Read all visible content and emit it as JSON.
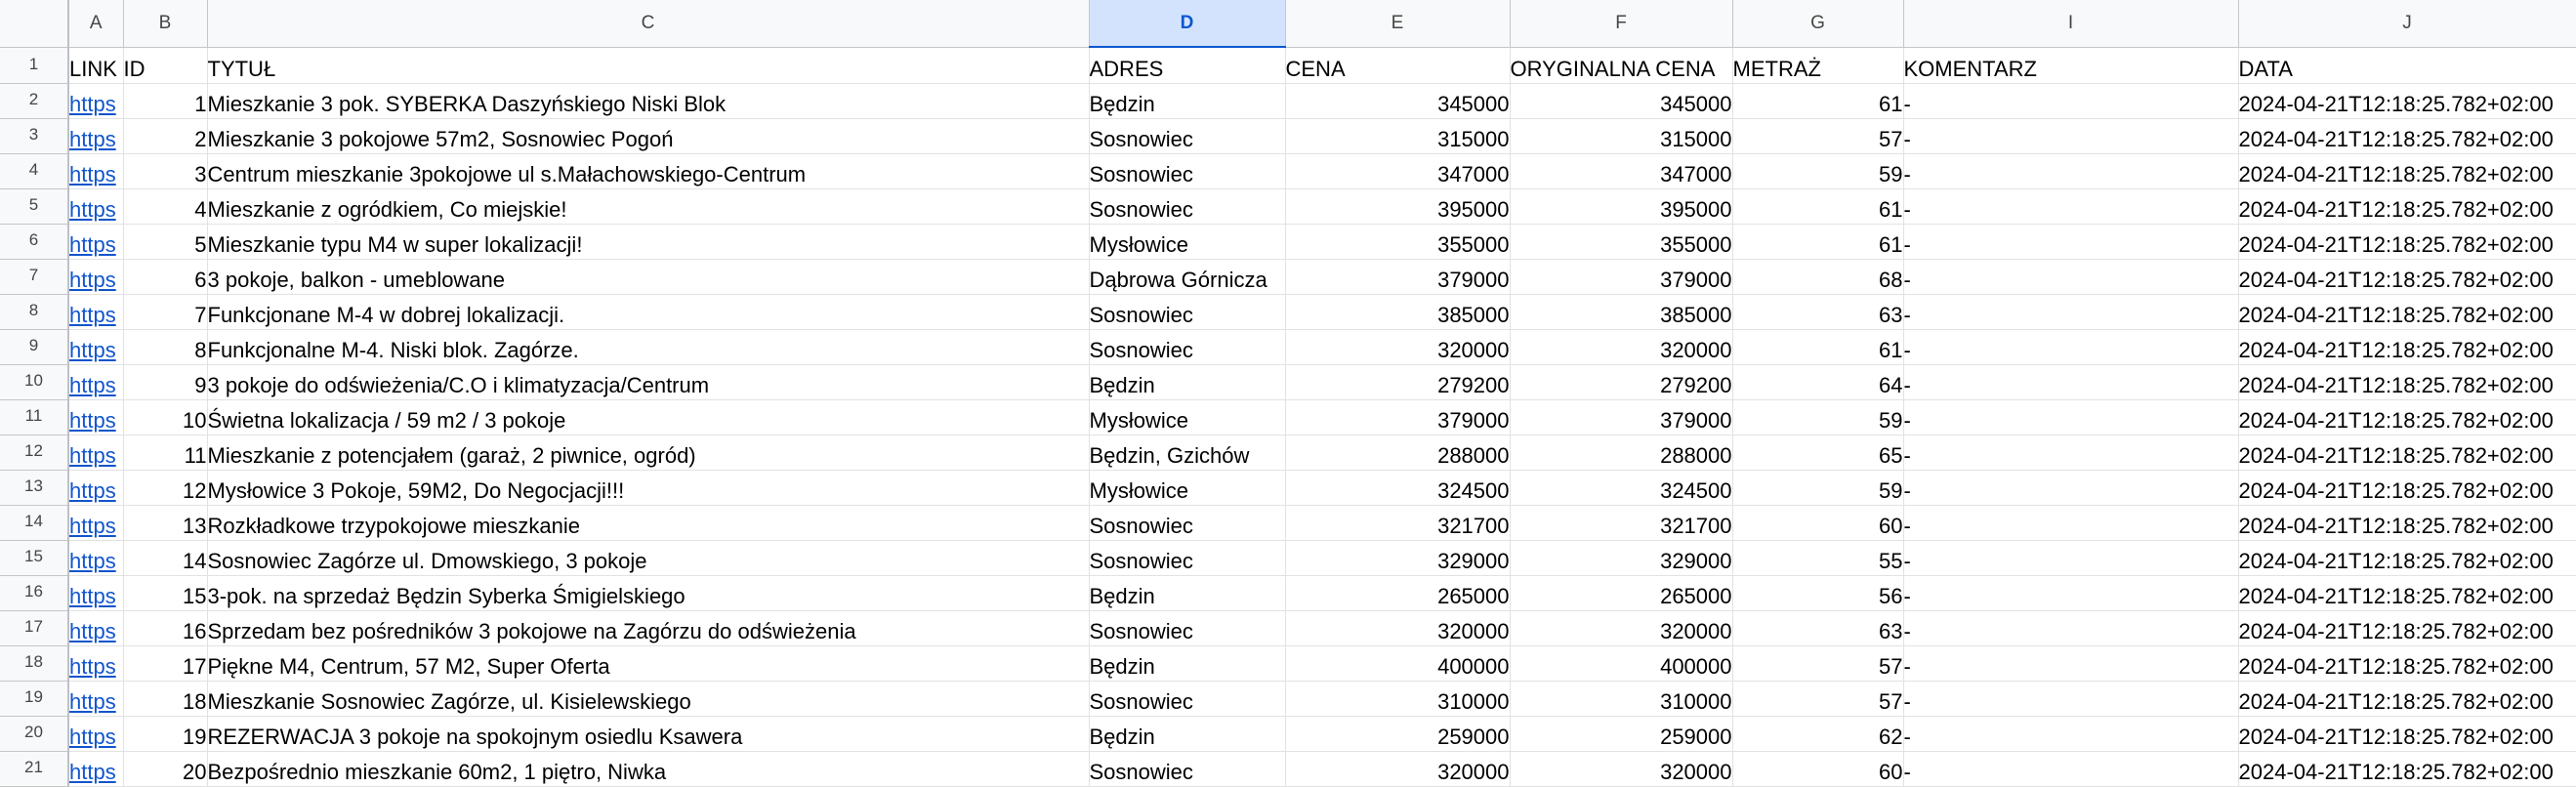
{
  "columns": [
    "A",
    "B",
    "C",
    "D",
    "E",
    "F",
    "G",
    "I",
    "J"
  ],
  "selected_column": "D",
  "headers": {
    "link": "LINK",
    "id": "ID",
    "title": "TYTUŁ",
    "address": "ADRES",
    "price": "CENA",
    "original_price": "ORYGINALNA CENA",
    "area": "METRAŻ",
    "comment": "KOMENTARZ",
    "date": "DATA"
  },
  "row_numbers": [
    "1",
    "2",
    "3",
    "4",
    "5",
    "6",
    "7",
    "8",
    "9",
    "10",
    "11",
    "12",
    "13",
    "14",
    "15",
    "16",
    "17",
    "18",
    "19",
    "20",
    "21"
  ],
  "rows": [
    {
      "link": "https",
      "id": "1",
      "title": "Mieszkanie 3 pok. SYBERKA Daszyńskiego Niski Blok",
      "address": "Będzin",
      "price": "345000",
      "original_price": "345000",
      "area": "61",
      "comment": "-",
      "date": "2024-04-21T12:18:25.782+02:00"
    },
    {
      "link": "https",
      "id": "2",
      "title": "Mieszkanie 3 pokojowe 57m2, Sosnowiec Pogoń",
      "address": "Sosnowiec",
      "price": "315000",
      "original_price": "315000",
      "area": "57",
      "comment": "-",
      "date": "2024-04-21T12:18:25.782+02:00"
    },
    {
      "link": "https",
      "id": "3",
      "title": "Centrum mieszkanie 3pokojowe ul s.Małachowskiego-Centrum",
      "address": "Sosnowiec",
      "price": "347000",
      "original_price": "347000",
      "area": "59",
      "comment": "-",
      "date": "2024-04-21T12:18:25.782+02:00"
    },
    {
      "link": "https",
      "id": "4",
      "title": "Mieszkanie z ogródkiem, Co miejskie!",
      "address": "Sosnowiec",
      "price": "395000",
      "original_price": "395000",
      "area": "61",
      "comment": "-",
      "date": "2024-04-21T12:18:25.782+02:00"
    },
    {
      "link": "https",
      "id": "5",
      "title": "Mieszkanie typu M4 w super lokalizacji!",
      "address": "Mysłowice",
      "price": "355000",
      "original_price": "355000",
      "area": "61",
      "comment": "-",
      "date": "2024-04-21T12:18:25.782+02:00"
    },
    {
      "link": "https",
      "id": "6",
      "title": "3 pokoje, balkon - umeblowane",
      "address": "Dąbrowa Górnicza",
      "price": "379000",
      "original_price": "379000",
      "area": "68",
      "comment": "-",
      "date": "2024-04-21T12:18:25.782+02:00"
    },
    {
      "link": "https",
      "id": "7",
      "title": "Funkcjonane M-4 w dobrej lokalizacji.",
      "address": "Sosnowiec",
      "price": "385000",
      "original_price": "385000",
      "area": "63",
      "comment": "-",
      "date": "2024-04-21T12:18:25.782+02:00"
    },
    {
      "link": "https",
      "id": "8",
      "title": "Funkcjonalne M-4. Niski blok. Zagórze.",
      "address": "Sosnowiec",
      "price": "320000",
      "original_price": "320000",
      "area": "61",
      "comment": "-",
      "date": "2024-04-21T12:18:25.782+02:00"
    },
    {
      "link": "https",
      "id": "9",
      "title": "3 pokoje do odświeżenia/C.O i klimatyzacja/Centrum",
      "address": "Będzin",
      "price": "279200",
      "original_price": "279200",
      "area": "64",
      "comment": "-",
      "date": "2024-04-21T12:18:25.782+02:00"
    },
    {
      "link": "https",
      "id": "10",
      "title": "Świetna lokalizacja / 59 m2 / 3 pokoje",
      "address": "Mysłowice",
      "price": "379000",
      "original_price": "379000",
      "area": "59",
      "comment": "-",
      "date": "2024-04-21T12:18:25.782+02:00"
    },
    {
      "link": "https",
      "id": "11",
      "title": "Mieszkanie z potencjałem (garaż, 2 piwnice, ogród)",
      "address": "Będzin, Gzichów",
      "price": "288000",
      "original_price": "288000",
      "area": "65",
      "comment": "-",
      "date": "2024-04-21T12:18:25.782+02:00"
    },
    {
      "link": "https",
      "id": "12",
      "title": "Mysłowice 3 Pokoje, 59M2, Do Negocjacji!!!",
      "address": "Mysłowice",
      "price": "324500",
      "original_price": "324500",
      "area": "59",
      "comment": "-",
      "date": "2024-04-21T12:18:25.782+02:00"
    },
    {
      "link": "https",
      "id": "13",
      "title": "Rozkładkowe trzypokojowe mieszkanie",
      "address": "Sosnowiec",
      "price": "321700",
      "original_price": "321700",
      "area": "60",
      "comment": "-",
      "date": "2024-04-21T12:18:25.782+02:00"
    },
    {
      "link": "https",
      "id": "14",
      "title": "Sosnowiec Zagórze ul. Dmowskiego, 3 pokoje",
      "address": "Sosnowiec",
      "price": "329000",
      "original_price": "329000",
      "area": "55",
      "comment": "-",
      "date": "2024-04-21T12:18:25.782+02:00"
    },
    {
      "link": "https",
      "id": "15",
      "title": "3-pok. na sprzedaż Będzin Syberka Śmigielskiego",
      "address": "Będzin",
      "price": "265000",
      "original_price": "265000",
      "area": "56",
      "comment": "-",
      "date": "2024-04-21T12:18:25.782+02:00"
    },
    {
      "link": "https",
      "id": "16",
      "title": "Sprzedam bez pośredników 3 pokojowe na Zagórzu do odświeżenia",
      "address": "Sosnowiec",
      "price": "320000",
      "original_price": "320000",
      "area": "63",
      "comment": "-",
      "date": "2024-04-21T12:18:25.782+02:00"
    },
    {
      "link": "https",
      "id": "17",
      "title": "Piękne M4, Centrum, 57 M2, Super Oferta",
      "address": "Będzin",
      "price": "400000",
      "original_price": "400000",
      "area": "57",
      "comment": "-",
      "date": "2024-04-21T12:18:25.782+02:00"
    },
    {
      "link": "https",
      "id": "18",
      "title": "Mieszkanie Sosnowiec Zagórze, ul. Kisielewskiego",
      "address": "Sosnowiec",
      "price": "310000",
      "original_price": "310000",
      "area": "57",
      "comment": "-",
      "date": "2024-04-21T12:18:25.782+02:00"
    },
    {
      "link": "https",
      "id": "19",
      "title": "REZERWACJA 3 pokoje na spokojnym osiedlu Ksawera",
      "address": "Będzin",
      "price": "259000",
      "original_price": "259000",
      "area": "62",
      "comment": "-",
      "date": "2024-04-21T12:18:25.782+02:00"
    },
    {
      "link": "https",
      "id": "20",
      "title": "Bezpośrednio mieszkanie 60m2, 1 piętro, Niwka",
      "address": "Sosnowiec",
      "price": "320000",
      "original_price": "320000",
      "area": "60",
      "comment": "-",
      "date": "2024-04-21T12:18:25.782+02:00"
    }
  ]
}
